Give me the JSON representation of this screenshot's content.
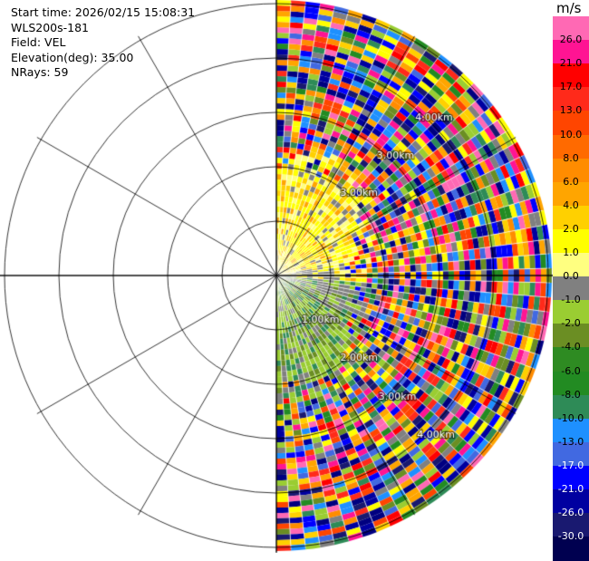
{
  "info": {
    "start_time": "Start time: 2026/02/15 15:08:31",
    "instrument": "WLS200s-181",
    "field": "Field: VEL",
    "elevation": "Elevation(deg): 35.00",
    "nrays": "NRays: 59"
  },
  "range_rings": {
    "labels": [
      "1.00km",
      "2.00km",
      "3.00km",
      "4.00km"
    ],
    "upper_labels": [
      "3.00km",
      "4.00km"
    ],
    "upper_label_bottom": "3.00km"
  },
  "colorbar": {
    "unit": "m/s",
    "ticks": [
      "26.0",
      "21.0",
      "17.0",
      "13.0",
      "10.0",
      "8.0",
      "6.0",
      "4.0",
      "2.0",
      "1.0",
      "0.0",
      "-1.0",
      "-2.0",
      "-4.0",
      "-6.0",
      "-8.0",
      "-10.0",
      "-13.0",
      "-17.0",
      "-21.0",
      "-26.0",
      "-30.0"
    ],
    "colors": [
      "#ff69b4",
      "#ff1493",
      "#ff0000",
      "#ff2a1a",
      "#ff4500",
      "#ff6a00",
      "#ff8c00",
      "#ffa500",
      "#ffd000",
      "#ffff00",
      "#ffff80",
      "#808080",
      "#9acd32",
      "#6b8e23",
      "#2e8b22",
      "#228b22",
      "#2e8b57",
      "#1e90ff",
      "#4169e1",
      "#0000ff",
      "#0000a0",
      "#191970",
      "#000050"
    ]
  },
  "icons": {
    "polar_grid": "polar-grid-icon"
  }
}
